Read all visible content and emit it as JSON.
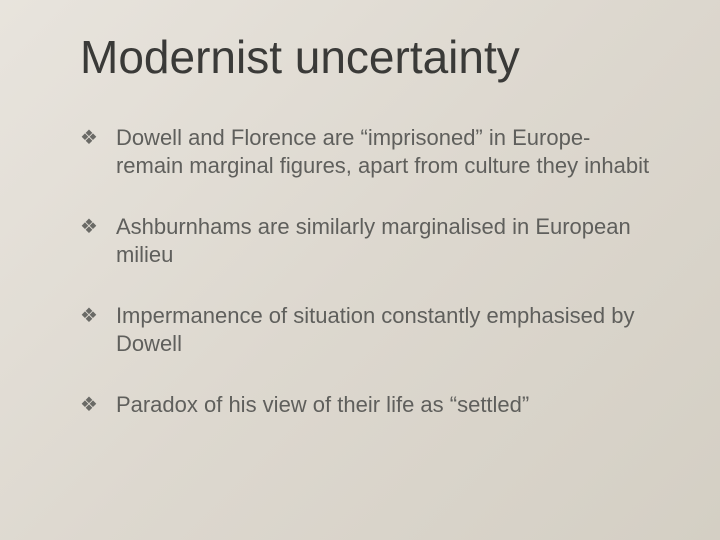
{
  "slide": {
    "title": "Modernist uncertainty",
    "bullets": [
      {
        "text": "Dowell and Florence are “imprisoned” in Europe- remain marginal figures, apart from culture they inhabit"
      },
      {
        "text": "Ashburnhams are similarly marginalised in European milieu"
      },
      {
        "text": "Impermanence of situation constantly emphasised by Dowell"
      },
      {
        "text": "Paradox of his view of their life as “settled”"
      }
    ],
    "bullet_glyph": "❖",
    "background_gradient": [
      "#e8e4dd",
      "#d4cfc4"
    ],
    "title_color": "#3a3a38",
    "text_color": "#5f5f5c",
    "title_fontsize": 46,
    "body_fontsize": 22
  }
}
